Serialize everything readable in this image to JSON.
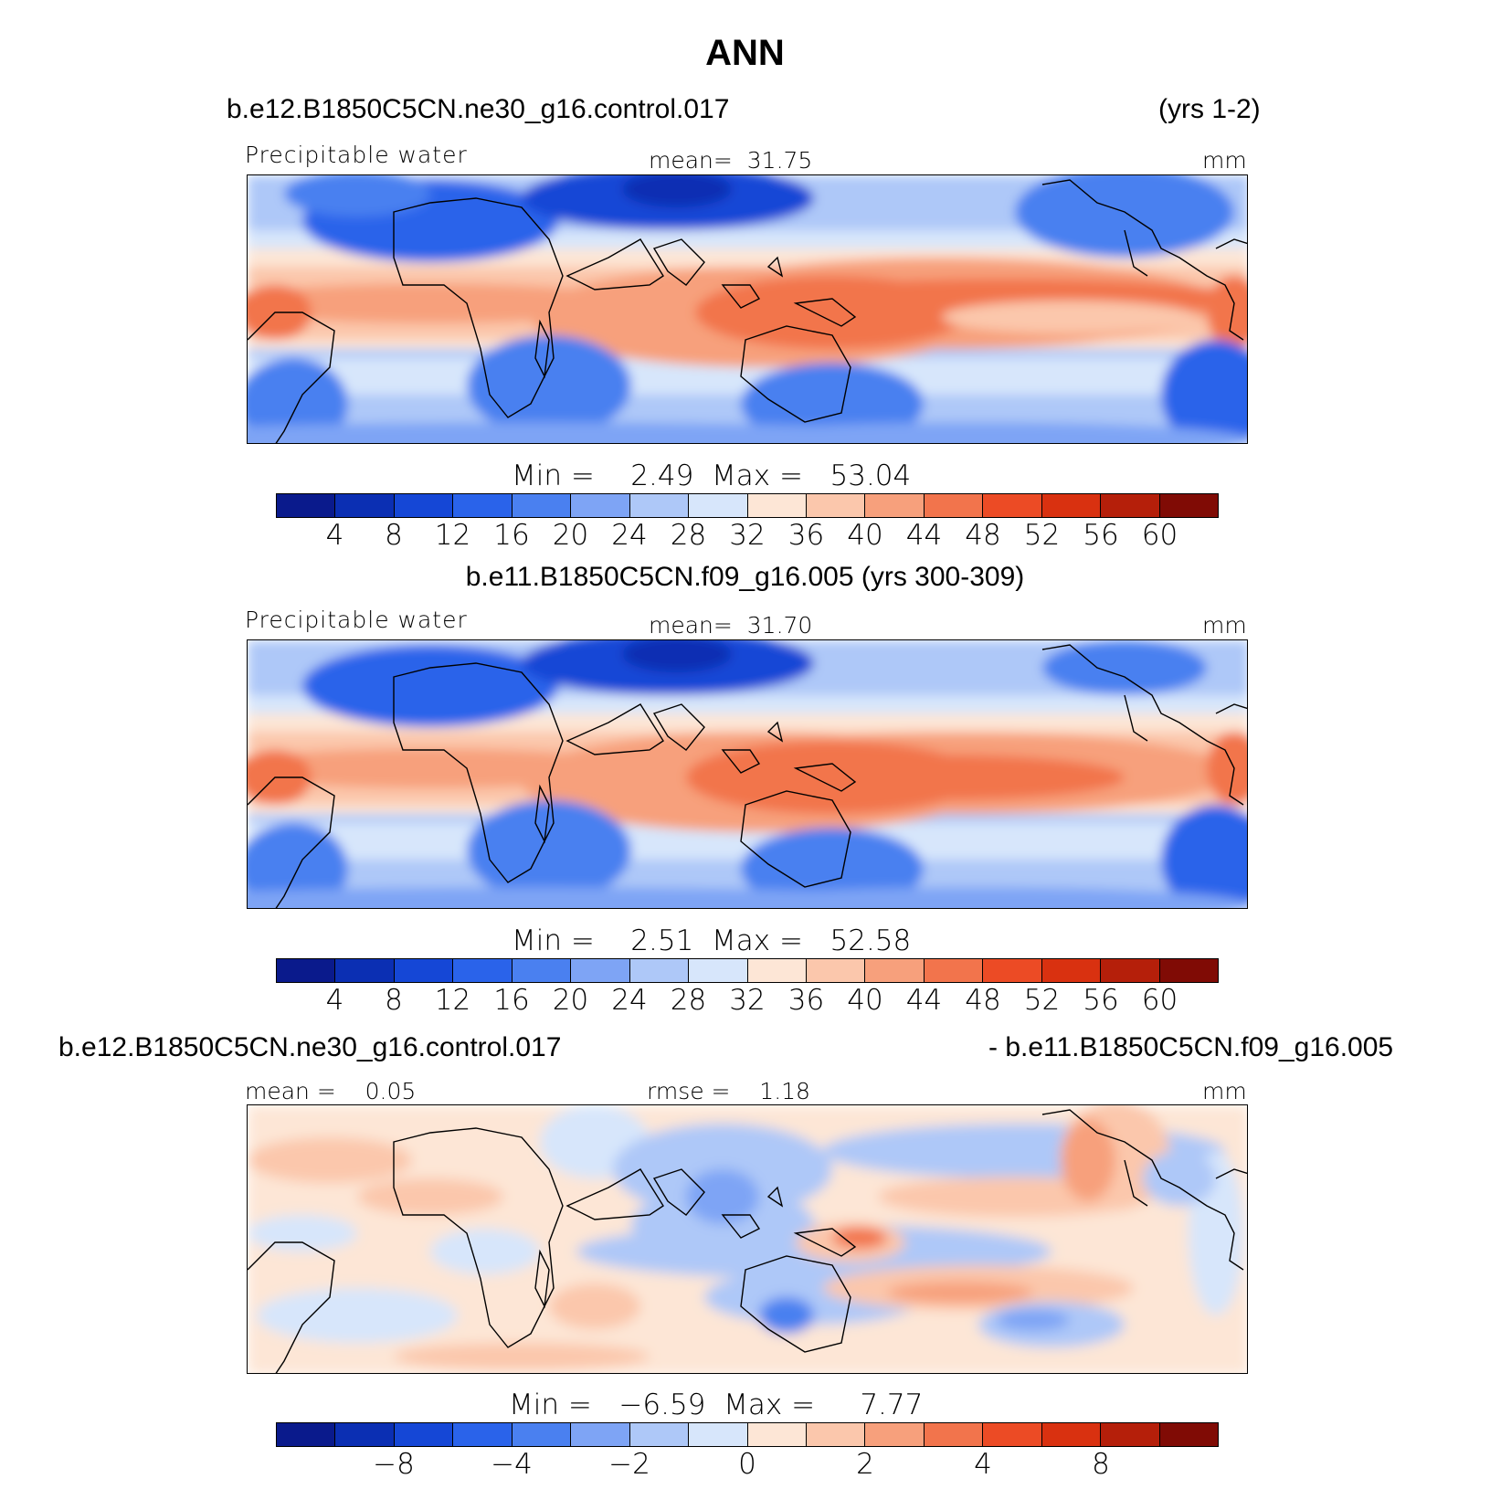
{
  "title": "ANN",
  "panel1": {
    "case": "b.e12.B1850C5CN.ne30_g16.control.017",
    "years": "(yrs 1-2)",
    "variable": "Precipitable water",
    "mean_label": "mean=",
    "mean_value": "31.75",
    "units": "mm",
    "min_label": "Min =",
    "min_value": "2.49",
    "max_label": "Max =",
    "max_value": "53.04"
  },
  "panel2": {
    "case": "b.e11.B1850C5CN.f09_g16.005 (yrs 300-309)",
    "variable": "Precipitable water",
    "mean_label": "mean=",
    "mean_value": "31.70",
    "units": "mm",
    "min_label": "Min =",
    "min_value": "2.51",
    "max_label": "Max =",
    "max_value": "52.58"
  },
  "panel3": {
    "case_left": "b.e12.B1850C5CN.ne30_g16.control.017",
    "case_right": "- b.e11.B1850C5CN.f09_g16.005",
    "mean_label": "mean =",
    "mean_value": "0.05",
    "rmse_label": "rmse =",
    "rmse_value": "1.18",
    "units": "mm",
    "min_label": "Min =",
    "min_value": "−6.59",
    "max_label": "Max =",
    "max_value": "7.77"
  },
  "colorbar_abs": {
    "colors": [
      "#0a1a8c",
      "#0b2fb3",
      "#1547d6",
      "#2a63ea",
      "#4a80f0",
      "#7ea4f5",
      "#aec8f8",
      "#d7e6fb",
      "#fde6d6",
      "#fbc7ac",
      "#f7a07c",
      "#f2744c",
      "#ec4b25",
      "#d93110",
      "#b51f0a",
      "#800b05"
    ],
    "ticks": [
      "4",
      "8",
      "12",
      "16",
      "20",
      "24",
      "28",
      "32",
      "36",
      "40",
      "44",
      "48",
      "52",
      "56",
      "60"
    ]
  },
  "colorbar_diff": {
    "colors": [
      "#0a1a8c",
      "#0b2fb3",
      "#1547d6",
      "#2a63ea",
      "#4a80f0",
      "#7ea4f5",
      "#aec8f8",
      "#d7e6fb",
      "#fde6d6",
      "#fbc7ac",
      "#f7a07c",
      "#f2744c",
      "#ec4b25",
      "#d93110",
      "#b51f0a",
      "#800b05"
    ],
    "ticks": [
      {
        "label": "−8",
        "boundary": 2
      },
      {
        "label": "−4",
        "boundary": 4
      },
      {
        "label": "−2",
        "boundary": 6
      },
      {
        "label": "0",
        "boundary": 8
      },
      {
        "label": "2",
        "boundary": 10
      },
      {
        "label": "4",
        "boundary": 12
      },
      {
        "label": "8",
        "boundary": 14
      }
    ]
  }
}
